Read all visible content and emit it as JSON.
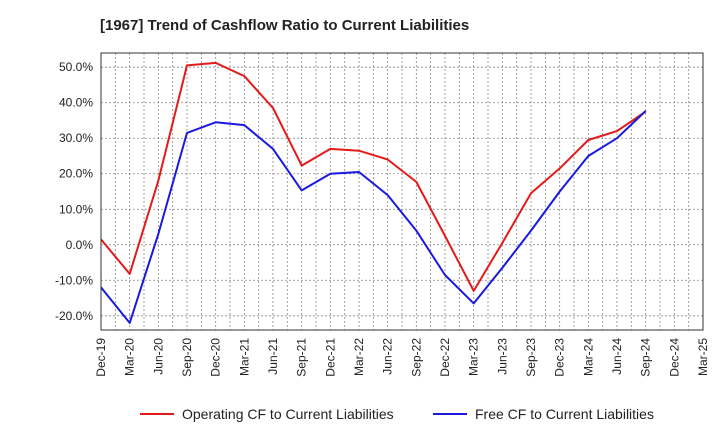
{
  "chart_data": {
    "type": "line",
    "title": "[1967]  Trend of Cashflow Ratio to Current Liabilities",
    "xlabel": "",
    "ylabel": "",
    "ylim": [
      -24,
      54
    ],
    "yticks": [
      -20,
      -10,
      0,
      10,
      20,
      30,
      40,
      50
    ],
    "ytick_labels": [
      "-20.0%",
      "-10.0%",
      "0.0%",
      "10.0%",
      "20.0%",
      "30.0%",
      "40.0%",
      "50.0%"
    ],
    "categories": [
      "Dec-19",
      "Mar-20",
      "Jun-20",
      "Sep-20",
      "Dec-20",
      "Mar-21",
      "Jun-21",
      "Sep-21",
      "Dec-21",
      "Mar-22",
      "Jun-22",
      "Sep-22",
      "Dec-22",
      "Mar-23",
      "Jun-23",
      "Sep-23",
      "Dec-23",
      "Mar-24",
      "Jun-24",
      "Sep-24",
      "Dec-24",
      "Mar-25"
    ],
    "grid": true,
    "legend_position": "bottom",
    "series": [
      {
        "name": "Operating CF to Current Liabilities",
        "color": "#e31a1c",
        "values": [
          1.5,
          -8.2,
          18.0,
          50.5,
          51.2,
          47.5,
          38.5,
          22.3,
          27.0,
          26.5,
          24.0,
          17.7,
          2.5,
          -13.0,
          0.5,
          14.5,
          21.5,
          29.5,
          32.0,
          37.5,
          null,
          null
        ]
      },
      {
        "name": "Free CF to Current Liabilities",
        "color": "#1a1adf",
        "values": [
          -12.0,
          -22.0,
          3.0,
          31.5,
          34.5,
          33.7,
          27.0,
          15.3,
          20.0,
          20.5,
          14.0,
          4.0,
          -8.5,
          -16.5,
          -6.5,
          4.0,
          15.0,
          25.0,
          30.0,
          37.7,
          null,
          null
        ]
      }
    ]
  }
}
